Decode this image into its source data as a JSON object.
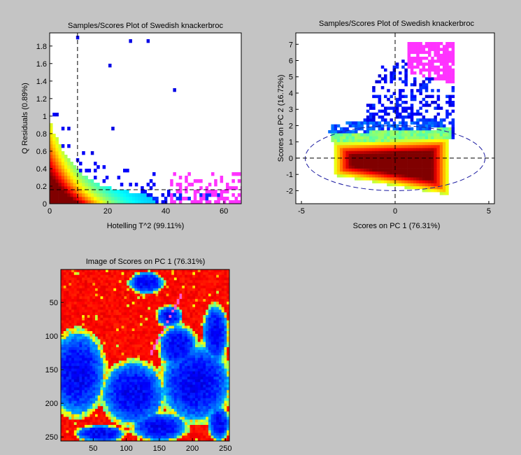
{
  "figure": {
    "background": "#c4c4c4"
  },
  "chart_data": [
    {
      "type": "heatmap",
      "title": "Samples/Scores Plot of Swedish knackerbroc",
      "xlabel": "Hotelling T^2 (99.11%)",
      "ylabel": "Q Residuals (0.89%)",
      "xlim": [
        0,
        66
      ],
      "ylim": [
        0,
        1.95
      ],
      "xticks": [
        "0",
        "20",
        "40",
        "60"
      ],
      "yticks": [
        "0",
        "0.2",
        "0.4",
        "0.6",
        "0.8",
        "1",
        "1.2",
        "1.4",
        "1.6",
        "1.8"
      ],
      "limit_lines": {
        "t2_limit": 9.6,
        "q_limit": 0.16
      },
      "highlight_color": "#ff33ff",
      "colormap": "jet",
      "grid": false
    },
    {
      "type": "heatmap",
      "title": "Samples/Scores Plot of Swedish knackerbroc",
      "xlabel": "Scores on PC 1 (76.31%)",
      "ylabel": "Scores on PC 2 (16.72%)",
      "xlim": [
        -5.3,
        5.3
      ],
      "ylim": [
        -2.8,
        7.7
      ],
      "xticks": [
        "-5",
        "0",
        "5"
      ],
      "yticks": [
        "-2",
        "-1",
        "0",
        "1",
        "2",
        "3",
        "4",
        "5",
        "6",
        "7"
      ],
      "confidence_ellipse": {
        "center": [
          0,
          0
        ],
        "semi_axes": [
          4.8,
          2.0
        ]
      },
      "highlight_color": "#ff33ff",
      "colormap": "jet",
      "grid": false
    },
    {
      "type": "heatmap",
      "title": "Image of Scores on PC 1 (76.31%)",
      "xlabel": "",
      "ylabel": "",
      "xlim": [
        1,
        256
      ],
      "ylim": [
        256,
        1
      ],
      "xticks": [
        "50",
        "100",
        "150",
        "200",
        "250"
      ],
      "yticks": [
        "50",
        "100",
        "150",
        "200",
        "250"
      ],
      "colormap": "jet",
      "grid": false
    }
  ]
}
